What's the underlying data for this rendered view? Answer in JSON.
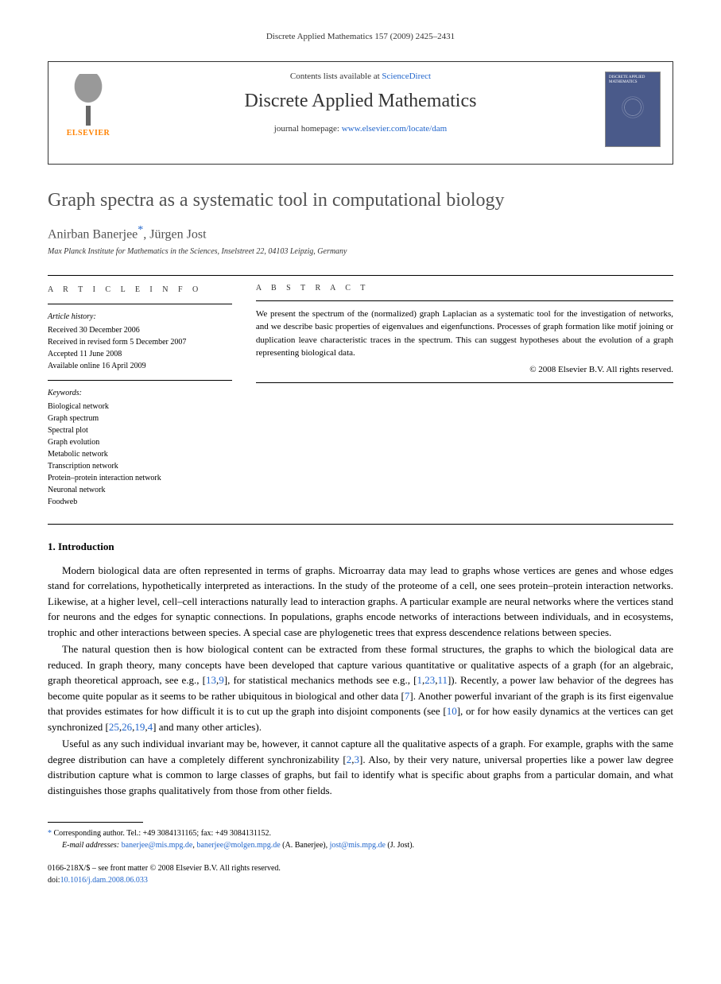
{
  "runningHeader": "Discrete Applied Mathematics 157 (2009) 2425–2431",
  "journalBox": {
    "publisherName": "ELSEVIER",
    "contentsPrefix": "Contents lists available at ",
    "contentsLink": "ScienceDirect",
    "journalName": "Discrete Applied Mathematics",
    "homepagePrefix": "journal homepage: ",
    "homepageLink": "www.elsevier.com/locate/dam",
    "coverTitle": "DISCRETE APPLIED MATHEMATICS"
  },
  "article": {
    "title": "Graph spectra as a systematic tool in computational biology",
    "authors": "Anirban Banerjee",
    "authorsSuffix": ", Jürgen Jost",
    "correspMark": "*",
    "affiliation": "Max Planck Institute for Mathematics in the Sciences, Inselstreet 22, 04103 Leipzig, Germany"
  },
  "articleInfo": {
    "heading": "A R T I C L E   I N F O",
    "historyLabel": "Article history:",
    "history": [
      "Received 30 December 2006",
      "Received in revised form 5 December 2007",
      "Accepted 11 June 2008",
      "Available online 16 April 2009"
    ],
    "keywordsLabel": "Keywords:",
    "keywords": [
      "Biological network",
      "Graph spectrum",
      "Spectral plot",
      "Graph evolution",
      "Metabolic network",
      "Transcription network",
      "Protein–protein interaction network",
      "Neuronal network",
      "Foodweb"
    ]
  },
  "abstract": {
    "heading": "A B S T R A C T",
    "text": "We present the spectrum of the (normalized) graph Laplacian as a systematic tool for the investigation of networks, and we describe basic properties of eigenvalues and eigenfunctions. Processes of graph formation like motif joining or duplication leave characteristic traces in the spectrum. This can suggest hypotheses about the evolution of a graph representing biological data.",
    "copyright": "© 2008 Elsevier B.V. All rights reserved."
  },
  "sections": {
    "introHeading": "1. Introduction",
    "para1a": "Modern biological data are often represented in terms of graphs. Microarray data may lead to graphs whose vertices are genes and whose edges stand for correlations, hypothetically interpreted as interactions. In the study of the proteome of a cell, one sees protein–protein interaction networks. Likewise, at a higher level, cell–cell interactions naturally lead to interaction graphs. A particular example are neural networks where the vertices stand for neurons and the edges for synaptic connections. In populations, graphs encode networks of interactions between individuals, and in ecosystems, trophic and other interactions between species. A special case are phylogenetic trees that express descendence relations between species.",
    "para2a": "The natural question then is how biological content can be extracted from these formal structures, the graphs to which the biological data are reduced. In graph theory, many concepts have been developed that capture various quantitative or qualitative aspects of a graph (for an algebraic, graph theoretical approach, see e.g., [",
    "para2ref1": "13",
    "para2b": ",",
    "para2ref2": "9",
    "para2c": "], for statistical mechanics methods see e.g., [",
    "para2ref3": "1",
    "para2d": ",",
    "para2ref4": "23",
    "para2e": ",",
    "para2ref5": "11",
    "para2f": "]). Recently, a power law behavior of the degrees has become quite popular as it seems to be rather ubiquitous in biological and other data [",
    "para2ref6": "7",
    "para2g": "]. Another powerful invariant of the graph is its first eigenvalue that provides estimates for how difficult it is to cut up the graph into disjoint components (see [",
    "para2ref7": "10",
    "para2h": "], or for how easily dynamics at the vertices can get synchronized [",
    "para2ref8": "25",
    "para2i": ",",
    "para2ref9": "26",
    "para2j": ",",
    "para2ref10": "19",
    "para2k": ",",
    "para2ref11": "4",
    "para2l": "] and many other articles).",
    "para3a": "Useful as any such individual invariant may be, however, it cannot capture all the qualitative aspects of a graph. For example, graphs with the same degree distribution can have a completely different synchronizability [",
    "para3ref1": "2",
    "para3b": ",",
    "para3ref2": "3",
    "para3c": "]. Also, by their very nature, universal properties like a power law degree distribution capture what is common to large classes of graphs, but fail to identify what is specific about graphs from a particular domain, and what distinguishes those graphs qualitatively from those from other fields."
  },
  "footnotes": {
    "correspMark": "*",
    "correspText": " Corresponding author. Tel.: +49 3084131165; fax: +49 3084131152.",
    "emailLabel": "E-mail addresses: ",
    "email1": "banerjee@mis.mpg.de",
    "email1sep": ", ",
    "email2": "banerjee@molgen.mpg.de",
    "email2suffix": " (A. Banerjee), ",
    "email3": "jost@mis.mpg.de",
    "email3suffix": " (J. Jost)."
  },
  "bottom": {
    "line1": "0166-218X/$ – see front matter © 2008 Elsevier B.V. All rights reserved.",
    "doiPrefix": "doi:",
    "doiLink": "10.1016/j.dam.2008.06.033"
  },
  "colors": {
    "linkColor": "#2266cc",
    "elsevierOrange": "#ff8200",
    "titleGray": "#525252",
    "coverBlue": "#4a5a8a"
  }
}
